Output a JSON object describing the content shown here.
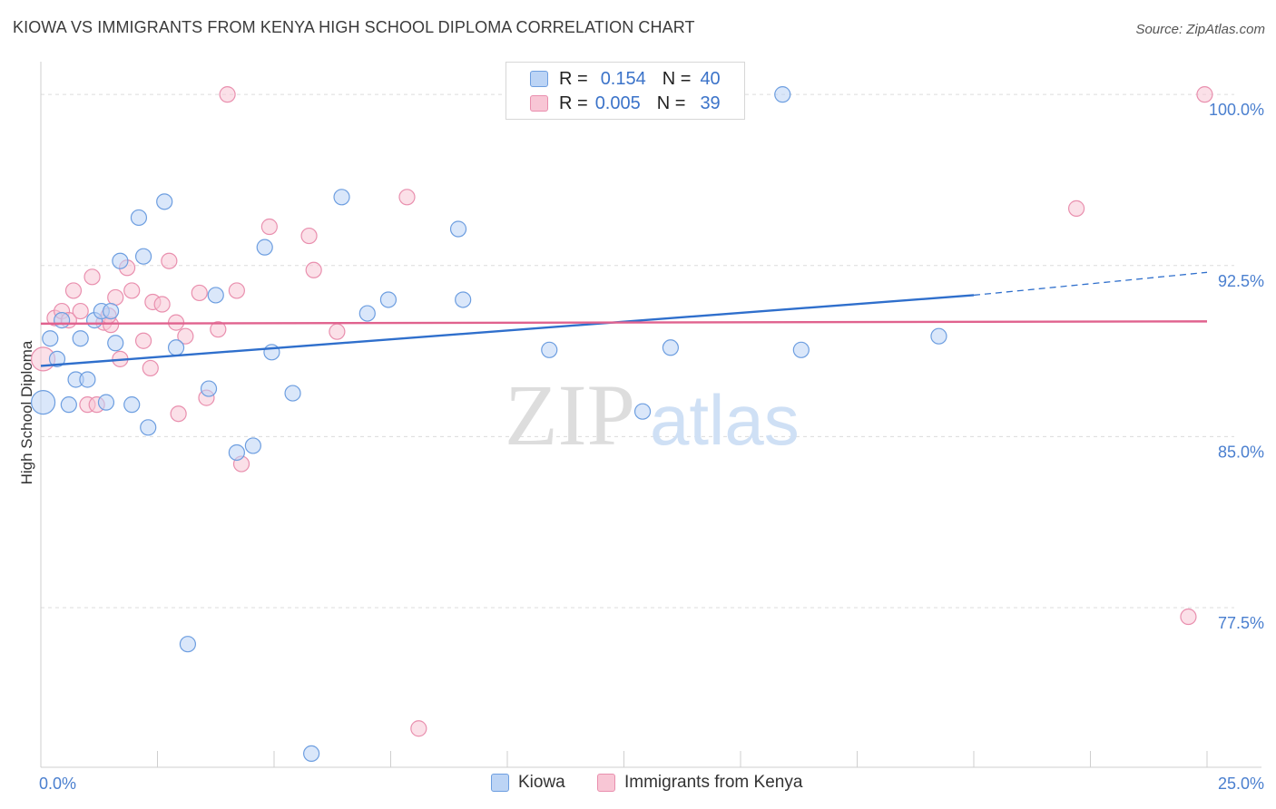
{
  "title": "KIOWA VS IMMIGRANTS FROM KENYA HIGH SCHOOL DIPLOMA CORRELATION CHART",
  "source": "Source: ZipAtlas.com",
  "watermark": {
    "zip": "ZIP",
    "atlas": "atlas"
  },
  "colors": {
    "kiowa_fill": "#bcd4f5",
    "kiowa_stroke": "#6d9ee0",
    "kiowa_line": "#2f6fcc",
    "kenya_fill": "#f8c6d5",
    "kenya_stroke": "#e98fae",
    "kenya_line": "#e0628e",
    "tick_text": "#4a7fcf",
    "grid": "#dcdcdc"
  },
  "legend": {
    "rows": [
      {
        "r_label": "R =",
        "r_value": "0.154",
        "n_label": "N =",
        "n_value": "40",
        "series": "kiowa"
      },
      {
        "r_label": "R =",
        "r_value": "0.005",
        "n_label": "N =",
        "n_value": "39",
        "series": "kenya"
      }
    ]
  },
  "chart_data": {
    "type": "scatter",
    "title": "KIOWA VS IMMIGRANTS FROM KENYA HIGH SCHOOL DIPLOMA CORRELATION CHART",
    "xlabel": "",
    "ylabel": "High School Diploma",
    "xlim": [
      0,
      25
    ],
    "ylim": [
      70.5,
      101
    ],
    "x_tick_labels": [
      {
        "value": 0,
        "label": "0.0%"
      },
      {
        "value": 25,
        "label": "25.0%"
      }
    ],
    "y_ticks": [
      {
        "value": 100,
        "label": "100.0%"
      },
      {
        "value": 92.5,
        "label": "92.5%"
      },
      {
        "value": 85,
        "label": "85.0%"
      },
      {
        "value": 77.5,
        "label": "77.5%"
      }
    ],
    "x_minor_ticks": [
      0,
      2.5,
      5,
      7.5,
      10,
      12.5,
      15,
      17.5,
      20,
      22.5,
      25
    ],
    "legend_position": "bottom",
    "series": [
      {
        "name": "Kiowa",
        "key": "kiowa",
        "R": 0.154,
        "N": 40,
        "points": [
          [
            0.05,
            86.5
          ],
          [
            0.2,
            89.3
          ],
          [
            0.35,
            88.4
          ],
          [
            0.45,
            90.1
          ],
          [
            0.6,
            86.4
          ],
          [
            0.75,
            87.5
          ],
          [
            0.85,
            89.3
          ],
          [
            1.0,
            87.5
          ],
          [
            1.15,
            90.1
          ],
          [
            1.3,
            90.5
          ],
          [
            1.4,
            86.5
          ],
          [
            1.5,
            90.5
          ],
          [
            1.6,
            89.1
          ],
          [
            1.7,
            92.7
          ],
          [
            1.95,
            86.4
          ],
          [
            2.1,
            94.6
          ],
          [
            2.2,
            92.9
          ],
          [
            2.3,
            85.4
          ],
          [
            2.65,
            95.3
          ],
          [
            2.9,
            88.9
          ],
          [
            3.6,
            87.1
          ],
          [
            3.75,
            91.2
          ],
          [
            4.2,
            84.3
          ],
          [
            4.55,
            84.6
          ],
          [
            4.8,
            93.3
          ],
          [
            4.95,
            88.7
          ],
          [
            5.4,
            86.9
          ],
          [
            5.8,
            71.1
          ],
          [
            6.45,
            95.5
          ],
          [
            7.0,
            90.4
          ],
          [
            7.45,
            91.0
          ],
          [
            8.95,
            94.1
          ],
          [
            9.05,
            91.0
          ],
          [
            10.9,
            88.8
          ],
          [
            12.9,
            86.1
          ],
          [
            13.5,
            88.9
          ],
          [
            15.9,
            100.0
          ],
          [
            16.3,
            88.8
          ],
          [
            19.25,
            89.4
          ],
          [
            3.15,
            75.9
          ]
        ],
        "trend": {
          "x_start": 0,
          "y_start": 88.1,
          "x_end": 20,
          "y_end": 91.2,
          "dashed_to_x": 25,
          "dashed_to_y": 92.2
        }
      },
      {
        "name": "Immigrants from Kenya",
        "key": "kenya",
        "R": 0.005,
        "N": 39,
        "points": [
          [
            0.05,
            88.4
          ],
          [
            0.3,
            90.2
          ],
          [
            0.45,
            90.5
          ],
          [
            0.6,
            90.1
          ],
          [
            0.7,
            91.4
          ],
          [
            0.85,
            90.5
          ],
          [
            1.0,
            86.4
          ],
          [
            1.1,
            92.0
          ],
          [
            1.2,
            86.4
          ],
          [
            1.35,
            90.0
          ],
          [
            1.5,
            89.9
          ],
          [
            1.6,
            91.1
          ],
          [
            1.7,
            88.4
          ],
          [
            1.85,
            92.4
          ],
          [
            1.95,
            91.4
          ],
          [
            2.2,
            89.2
          ],
          [
            2.35,
            88.0
          ],
          [
            2.4,
            90.9
          ],
          [
            2.6,
            90.8
          ],
          [
            2.75,
            92.7
          ],
          [
            2.9,
            90.0
          ],
          [
            2.95,
            86.0
          ],
          [
            3.1,
            89.4
          ],
          [
            3.4,
            91.3
          ],
          [
            3.55,
            86.7
          ],
          [
            3.8,
            89.7
          ],
          [
            4.0,
            100.0
          ],
          [
            4.2,
            91.4
          ],
          [
            4.3,
            83.8
          ],
          [
            4.9,
            94.2
          ],
          [
            5.75,
            93.8
          ],
          [
            5.85,
            92.3
          ],
          [
            6.35,
            89.6
          ],
          [
            7.85,
            95.5
          ],
          [
            8.1,
            72.2
          ],
          [
            22.2,
            95.0
          ],
          [
            24.6,
            77.1
          ],
          [
            24.95,
            100.0
          ],
          [
            1.45,
            90.3
          ]
        ],
        "trend": {
          "x_start": 0,
          "y_start": 89.95,
          "x_end": 25,
          "y_end": 90.05
        }
      }
    ]
  }
}
